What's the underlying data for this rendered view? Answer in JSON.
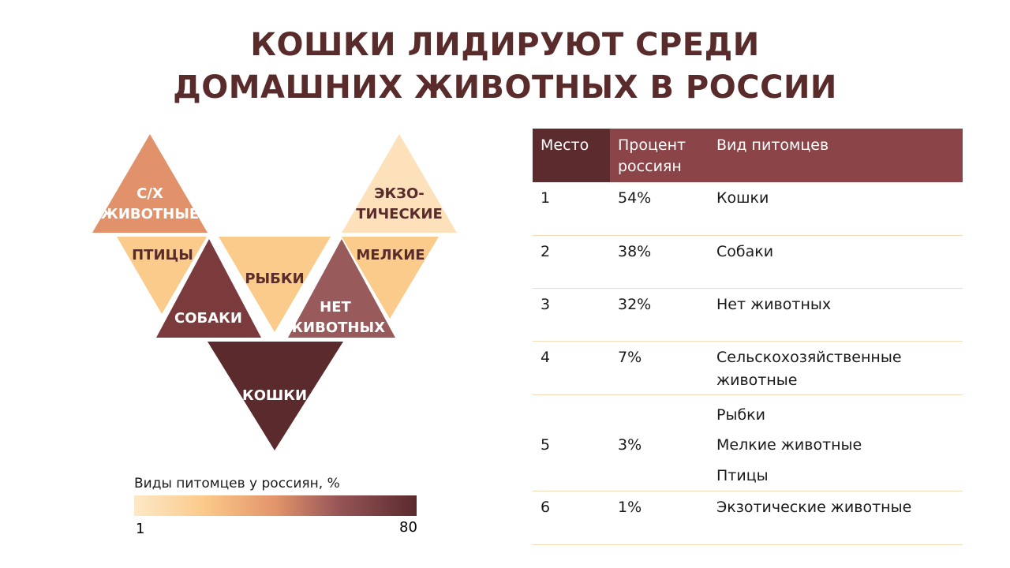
{
  "title": {
    "line1": "КОШКИ ЛИДИРУЮТ СРЕДИ",
    "line2": "ДОМАШНИХ ЖИВОТНЫХ В РОССИИ"
  },
  "diagram": {
    "triangles": [
      {
        "id": "farm",
        "lines": [
          "С/Х",
          "ЖИВОТНЫЕ"
        ],
        "color": "#e1926a",
        "text_color": "#ffffff"
      },
      {
        "id": "exotic",
        "lines": [
          "ЭКЗО-",
          "ТИЧЕСКИЕ"
        ],
        "color": "#fce1bb",
        "text_color": "#5a2b2b"
      },
      {
        "id": "birds",
        "lines": [
          "ПТИЦЫ"
        ],
        "color": "#fbcb8c",
        "text_color": "#5a2b2b"
      },
      {
        "id": "fish",
        "lines": [
          "РЫБКИ"
        ],
        "color": "#fbcb8c",
        "text_color": "#5a2b2b"
      },
      {
        "id": "small",
        "lines": [
          "МЕЛКИЕ"
        ],
        "color": "#fbcb8c",
        "text_color": "#5a2b2b"
      },
      {
        "id": "dogs",
        "lines": [
          "СОБАКИ"
        ],
        "color": "#7b3a3c",
        "text_color": "#ffffff"
      },
      {
        "id": "none",
        "lines": [
          "НЕТ",
          "ЖИВОТНЫХ"
        ],
        "color": "#985a5b",
        "text_color": "#ffffff"
      },
      {
        "id": "cats",
        "lines": [
          "КОШКИ"
        ],
        "color": "#5a2a2c",
        "text_color": "#ffffff"
      }
    ]
  },
  "legend": {
    "title": "Виды питомцев у россиян, %",
    "min": "1",
    "max": "80",
    "colors": [
      "#fde9c7",
      "#fbc98a",
      "#e2946a",
      "#975658",
      "#5a2a2c"
    ]
  },
  "table": {
    "headers": [
      "Место",
      "Процент россиян",
      "Вид питомцев"
    ],
    "rows": [
      {
        "place": "1",
        "percent": "54%",
        "pets": [
          "Кошки"
        ]
      },
      {
        "place": "2",
        "percent": "38%",
        "pets": [
          "Собаки"
        ]
      },
      {
        "place": "3",
        "percent": "32%",
        "pets": [
          "Нет животных"
        ]
      },
      {
        "place": "4",
        "percent": "7%",
        "pets": [
          "Сельскохозяйственные животные"
        ]
      },
      {
        "place": "5",
        "percent": "3%",
        "pets": [
          "Рыбки",
          "Мелкие животные",
          "Птицы"
        ]
      },
      {
        "place": "6",
        "percent": "1%",
        "pets": [
          "Экзотические животные"
        ]
      }
    ]
  }
}
